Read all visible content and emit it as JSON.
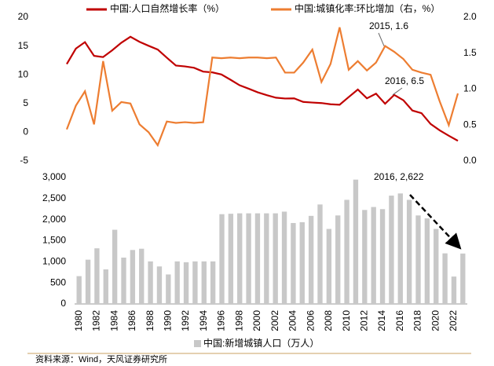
{
  "chart_data": [
    {
      "type": "line",
      "series": [
        {
          "name": "中国:人口自然增长率（%）",
          "color": "#c00000",
          "values": [
            11.87,
            14.55,
            15.68,
            13.29,
            13.08,
            14.26,
            15.57,
            16.61,
            15.73,
            15.04,
            14.39,
            12.98,
            11.6,
            11.45,
            11.21,
            10.55,
            10.42,
            10.06,
            9.14,
            8.18,
            7.58,
            6.95,
            6.45,
            6.01,
            5.87,
            5.89,
            5.28,
            5.17,
            5.08,
            4.87,
            4.79,
            6.13,
            7.43,
            5.9,
            6.71,
            4.96,
            6.5,
            5.58,
            3.78,
            3.32,
            1.45,
            0.34,
            -0.6,
            -1.48
          ]
        },
        {
          "name": "中国:城镇化率:环比增加（右，%）",
          "color": "#ed7d31",
          "axis": "y2",
          "values": [
            0.44,
            0.77,
            0.97,
            0.51,
            1.39,
            0.7,
            0.82,
            0.8,
            0.51,
            0.4,
            0.22,
            0.55,
            0.53,
            0.54,
            0.53,
            0.54,
            1.44,
            1.43,
            1.44,
            1.43,
            1.44,
            1.44,
            1.43,
            1.44,
            1.23,
            1.23,
            1.37,
            1.55,
            1.1,
            1.35,
            1.86,
            1.27,
            1.39,
            1.26,
            1.37,
            1.6,
            1.52,
            1.42,
            1.27,
            1.23,
            1.2,
            0.83,
            0.5,
            0.94
          ]
        }
      ],
      "ylim": [
        -5,
        20
      ],
      "yticks": [
        20,
        15,
        10,
        5,
        0,
        -5
      ],
      "y2lim": [
        0,
        2
      ],
      "y2ticks": [
        {
          "value": 2,
          "label": "2.0"
        },
        1.5,
        {
          "value": 1,
          "label": "1.0"
        },
        0.5,
        {
          "value": 0,
          "label": "0.0"
        }
      ],
      "annotations": [
        "2015, 1.6",
        "2016, 6.5"
      ]
    },
    {
      "type": "bar",
      "categories": [
        "1980",
        null,
        "1982",
        null,
        "1984",
        null,
        "1986",
        null,
        "1988",
        null,
        "1990",
        null,
        "1992",
        null,
        "1994",
        null,
        "1996",
        null,
        "1998",
        null,
        "2000",
        null,
        "2002",
        null,
        "2004",
        null,
        "2006",
        null,
        "2008",
        null,
        "2010",
        null,
        "2012",
        null,
        "2014",
        null,
        "2016",
        null,
        "2018",
        null,
        "2020",
        null,
        "2022",
        null
      ],
      "series": [
        {
          "name": "中国:新增城镇人口（万人）",
          "color": "#c8c8c8",
          "values": [
            660,
            1050,
            1320,
            820,
            1760,
            1100,
            1280,
            1310,
            1010,
            890,
            700,
            1010,
            990,
            1010,
            1010,
            1010,
            2130,
            2140,
            2150,
            2150,
            2150,
            2150,
            2150,
            2190,
            1920,
            1940,
            2090,
            2360,
            1780,
            2100,
            2470,
            2950,
            2230,
            2300,
            2250,
            2570,
            2622,
            2470,
            2100,
            2030,
            1780,
            1200,
            650,
            1196
          ]
        }
      ],
      "ylim": [
        0,
        3000
      ],
      "yticks": [
        {
          "value": 3000,
          "label": "3,000"
        },
        {
          "value": 2500,
          "label": "2,500"
        },
        {
          "value": 2000,
          "label": "2,000"
        },
        {
          "value": 1500,
          "label": "1,500"
        },
        {
          "value": 1000,
          "label": "1,000"
        },
        500,
        0
      ],
      "annotations": [
        "2016, 2,622"
      ],
      "source": "资料来源：Wind，天风证券研究所"
    }
  ]
}
